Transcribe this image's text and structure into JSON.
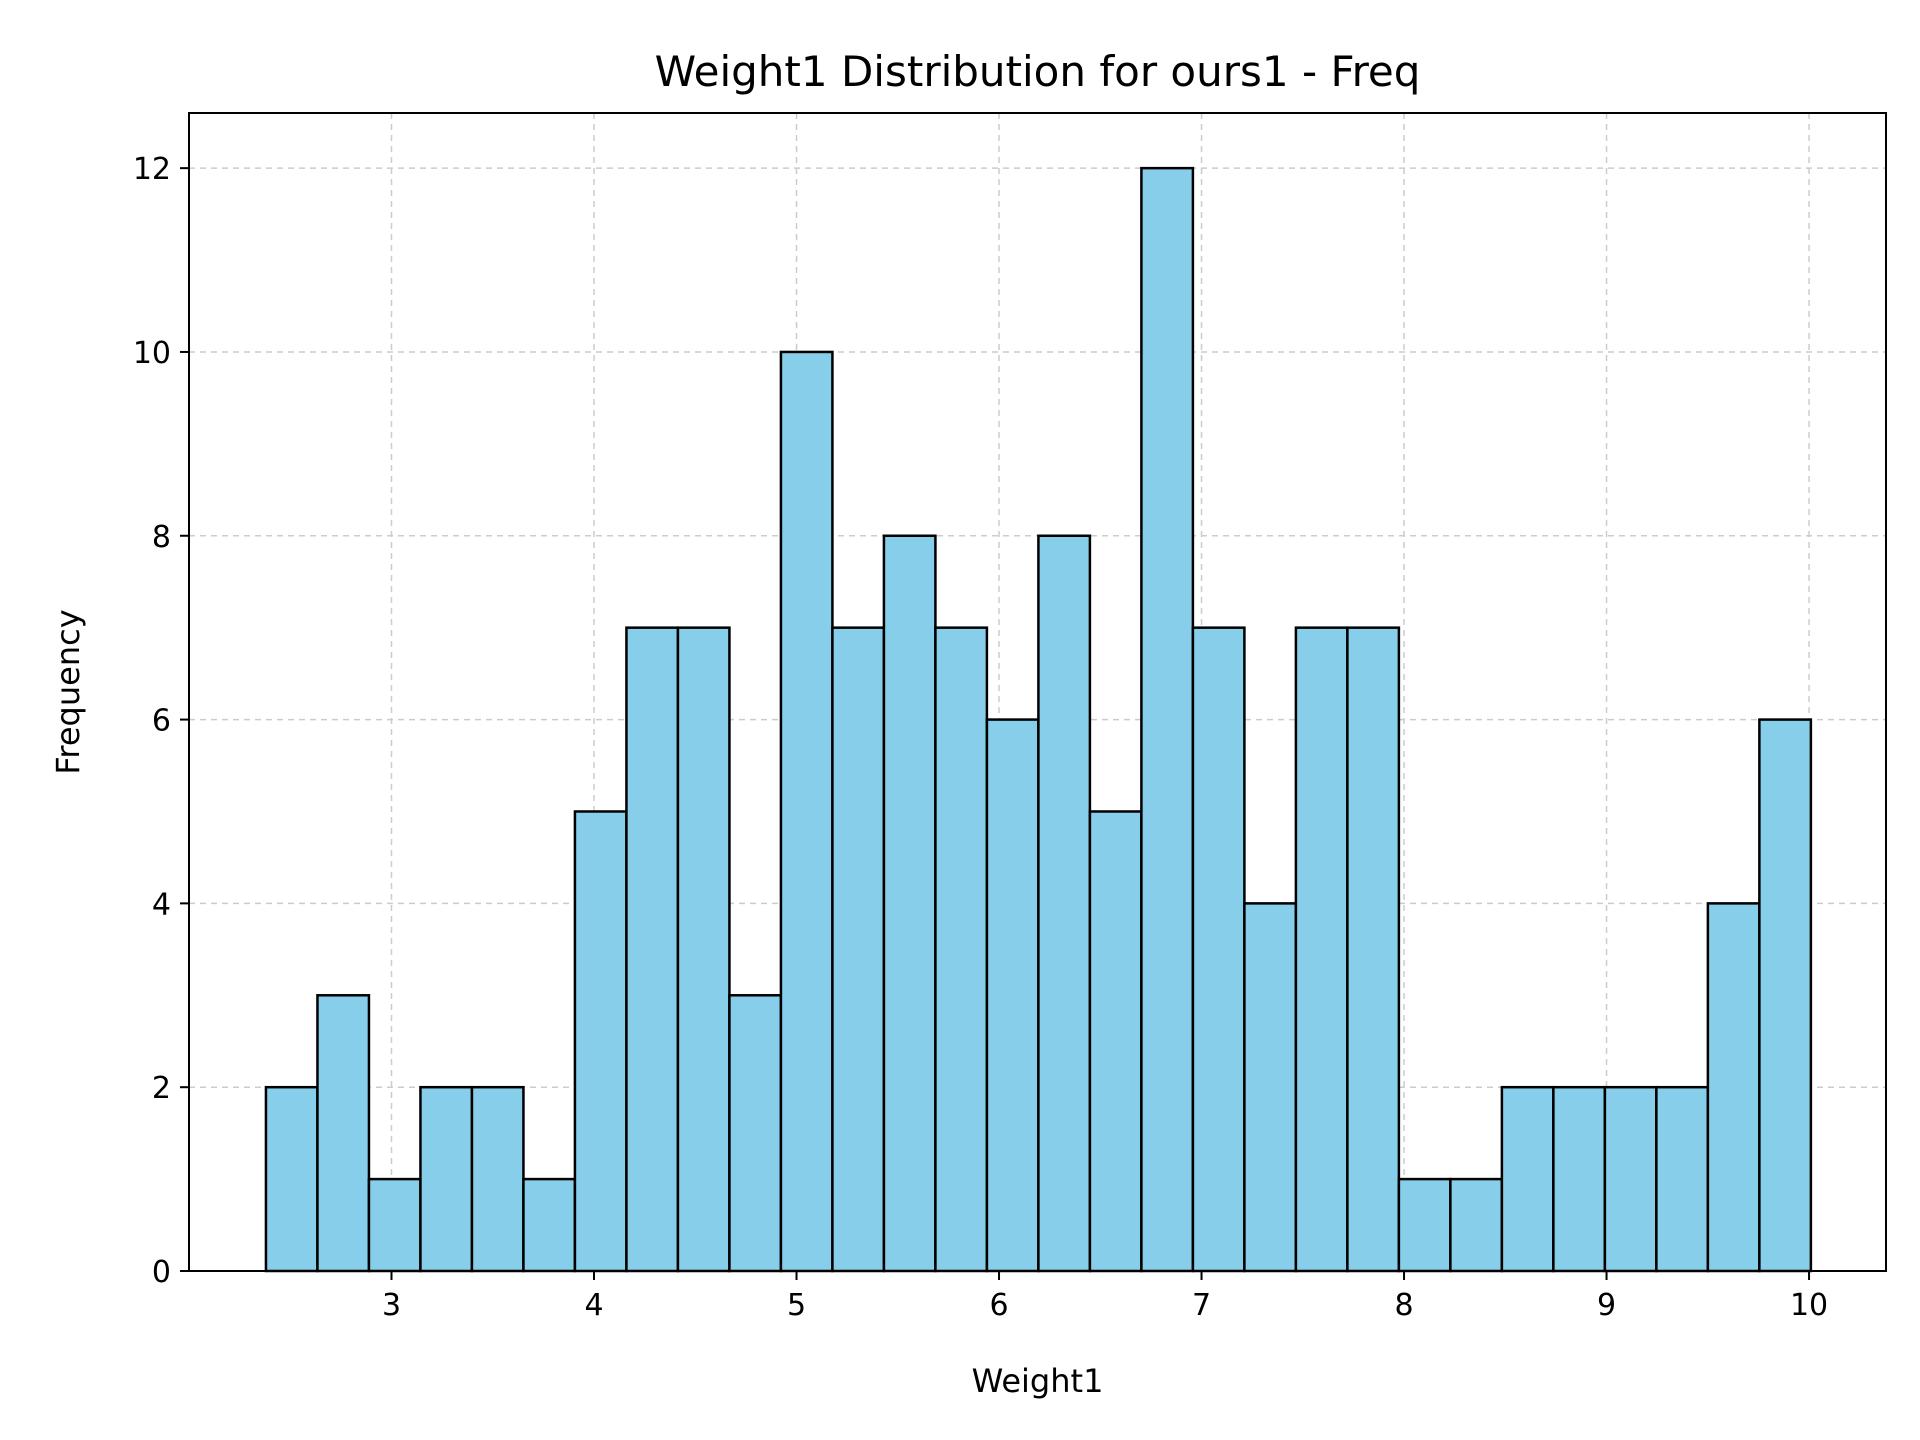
{
  "chart_data": {
    "type": "bar",
    "title": "Weight1 Distribution for ours1 - Freq",
    "xlabel": "Weight1",
    "ylabel": "Frequency",
    "xlim": [
      2.0,
      10.38
    ],
    "ylim": [
      0,
      12.6
    ],
    "xticks": [
      3,
      4,
      5,
      6,
      7,
      8,
      9,
      10
    ],
    "yticks": [
      0,
      2,
      4,
      6,
      8,
      10,
      12
    ],
    "grid": true,
    "bin_start": 2.38,
    "bin_width": 0.2543,
    "values": [
      2,
      3,
      1,
      2,
      2,
      1,
      5,
      7,
      7,
      3,
      10,
      7,
      8,
      7,
      6,
      8,
      5,
      12,
      7,
      4,
      7,
      7,
      1,
      1,
      2,
      2,
      2,
      2,
      4,
      6
    ],
    "colors": {
      "bar_fill": "#87ceeb",
      "bar_edge": "#000000",
      "grid": "#cccccc"
    }
  }
}
